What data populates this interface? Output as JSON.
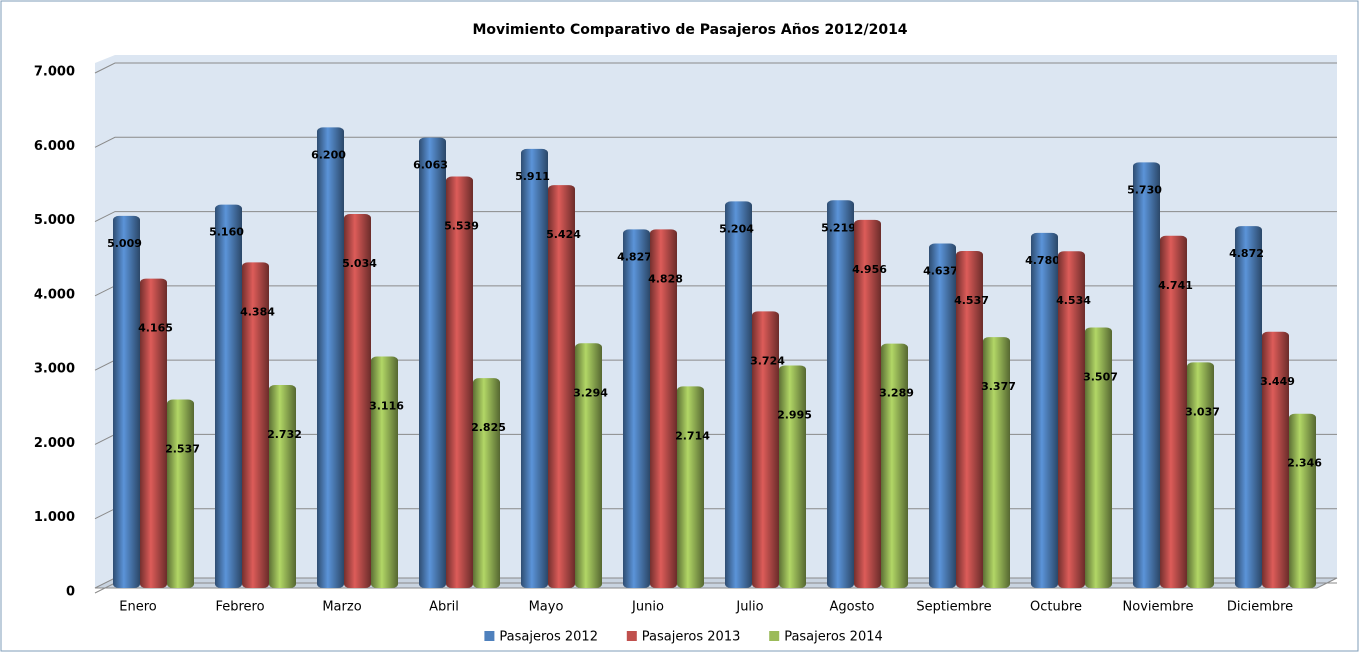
{
  "chart_data": {
    "type": "bar",
    "title": "Movimiento Comparativo de Pasajeros Años 2012/2014",
    "categories": [
      "Enero",
      "Febrero",
      "Marzo",
      "Abril",
      "Mayo",
      "Junio",
      "Julio",
      "Agosto",
      "Septiembre",
      "Octubre",
      "Noviembre",
      "Diciembre"
    ],
    "series": [
      {
        "name": "Pasajeros 2012",
        "color": "#4f81bd",
        "values": [
          5009,
          5160,
          6200,
          6063,
          5911,
          4827,
          5204,
          5219,
          4637,
          4780,
          5730,
          4872
        ],
        "value_labels": [
          "5.009",
          "5.160",
          "6.200",
          "6.063",
          "5.911",
          "4.827",
          "5.204",
          "5.219",
          "4.637",
          "4.780",
          "5.730",
          "4.872"
        ]
      },
      {
        "name": "Pasajeros 2013",
        "color": "#c0504d",
        "values": [
          4165,
          4384,
          5034,
          5539,
          5424,
          4828,
          3724,
          4956,
          4537,
          4534,
          4741,
          3449
        ],
        "value_labels": [
          "4.165",
          "4.384",
          "5.034",
          "5.539",
          "5.424",
          "4.828",
          "3.724",
          "4.956",
          "4.537",
          "4.534",
          "4.741",
          "3.449"
        ]
      },
      {
        "name": "Pasajeros 2014",
        "color": "#9bbb59",
        "values": [
          2537,
          2732,
          3116,
          2825,
          3294,
          2714,
          2995,
          3289,
          3377,
          3507,
          3037,
          2346
        ],
        "value_labels": [
          "2.537",
          "2.732",
          "3.116",
          "2.825",
          "3.294",
          "2.714",
          "2.995",
          "3.289",
          "3.377",
          "3.507",
          "3.037",
          "2.346"
        ]
      }
    ],
    "ylim": [
      0,
      7000
    ],
    "yticks": [
      0,
      {
        "value": 1000,
        "label": "1.000"
      },
      {
        "value": 2000,
        "label": "2.000"
      },
      {
        "value": 3000,
        "label": "3.000"
      },
      {
        "value": 4000,
        "label": "4.000"
      },
      {
        "value": 5000,
        "label": "5.000"
      },
      {
        "value": 6000,
        "label": "6.000"
      },
      {
        "value": 7000,
        "label": "7.000"
      }
    ],
    "grid": true,
    "legend": "bottom"
  }
}
